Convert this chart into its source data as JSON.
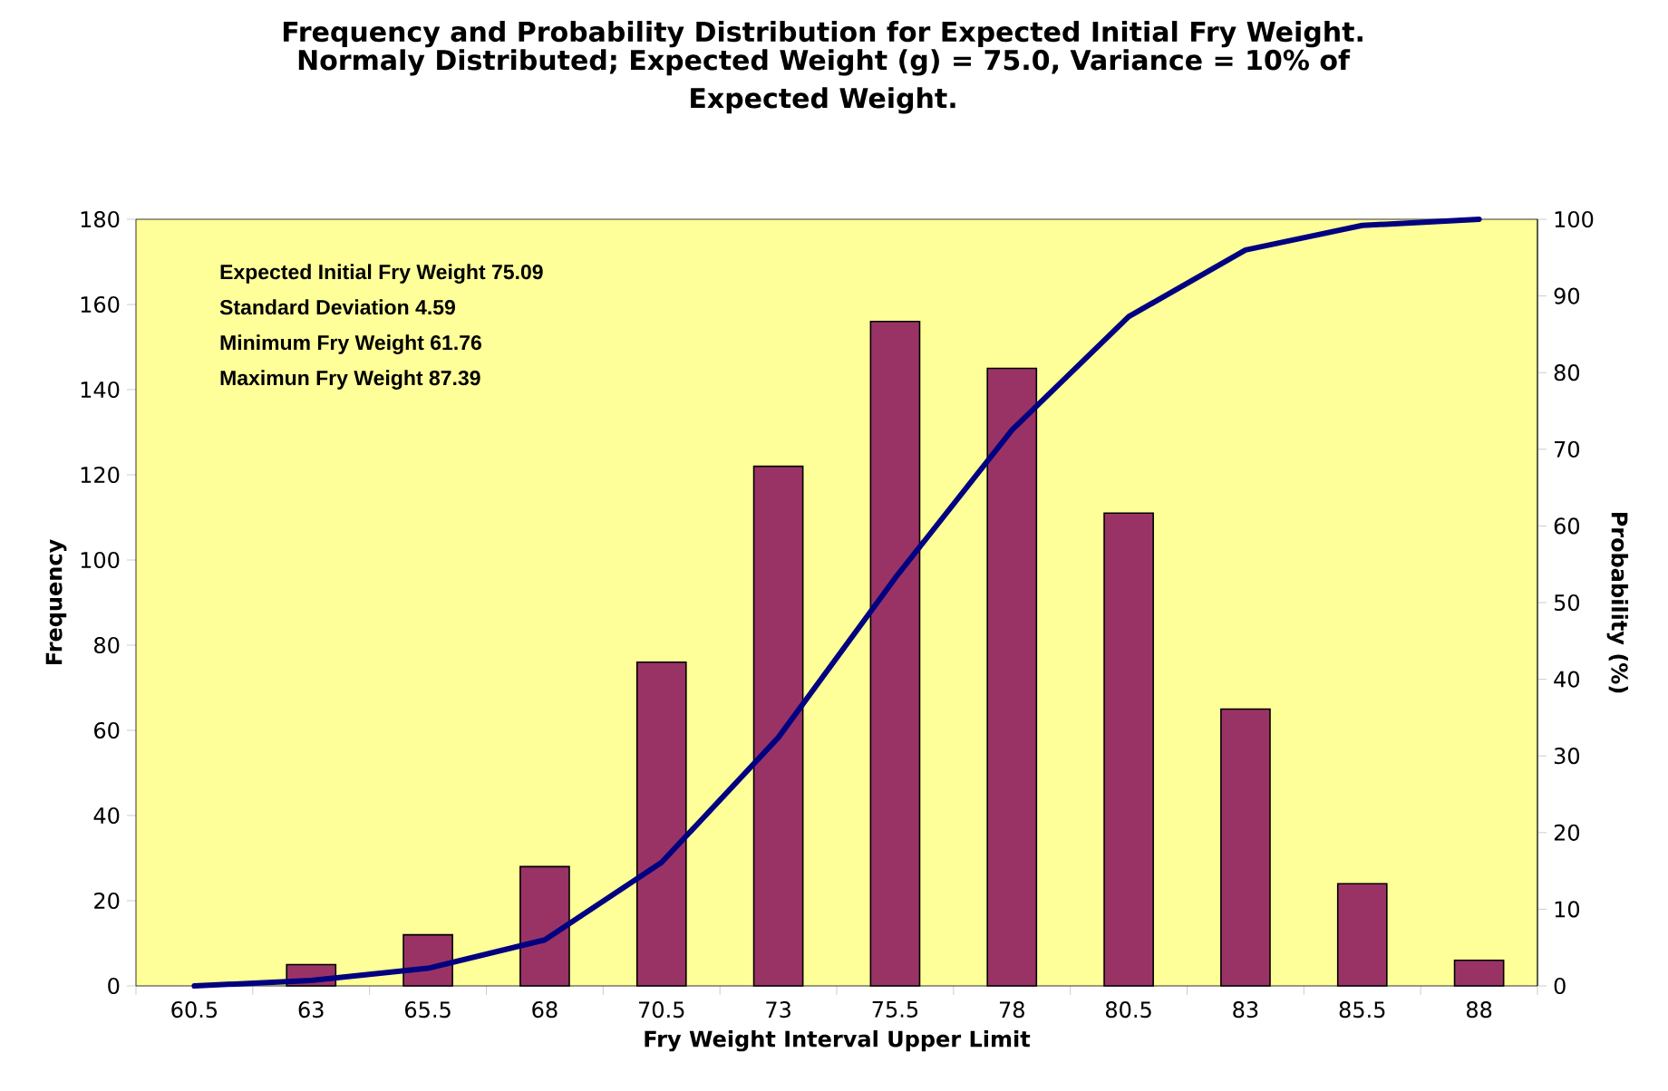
{
  "chart_data": {
    "type": "bar",
    "title": "Frequency and Probability Distribution for Expected Initial Fry Weight.",
    "subtitle": "Normaly Distributed; Expected Weight (g) = 75.0, Variance = 10% of Expected Weight.",
    "xlabel": "Fry Weight Interval Upper Limit",
    "ylabel": "Frequency",
    "y2label": "Probability (%)",
    "categories": [
      "60.5",
      "63",
      "65.5",
      "68",
      "70.5",
      "73",
      "75.5",
      "78",
      "80.5",
      "83",
      "85.5",
      "88"
    ],
    "series": [
      {
        "color": "#993366",
        "values": [
          0,
          5,
          12,
          28,
          76,
          122,
          156,
          145,
          111,
          65,
          24,
          6
        ]
      },
      {
        "type": "line",
        "axis": "y2",
        "color": "#000080",
        "values": [
          0,
          0.7,
          2.3,
          6,
          16.1,
          32.4,
          53.2,
          72.5,
          87.3,
          96,
          99.2,
          100
        ]
      }
    ],
    "ylim": [
      0,
      180
    ],
    "yticks": [
      0,
      20,
      40,
      60,
      80,
      100,
      120,
      140,
      160,
      180
    ],
    "y2lim": [
      0,
      100
    ],
    "y2ticks": [
      0,
      10,
      20,
      30,
      40,
      50,
      60,
      70,
      80,
      90,
      100
    ],
    "marker": "none",
    "annotations": [
      "Expected Initial Fry Weight 75.09",
      "Standard Deviation 4.59",
      "Minimum Fry Weight 61.76",
      "Maximun Fry Weight 87.39"
    ]
  }
}
